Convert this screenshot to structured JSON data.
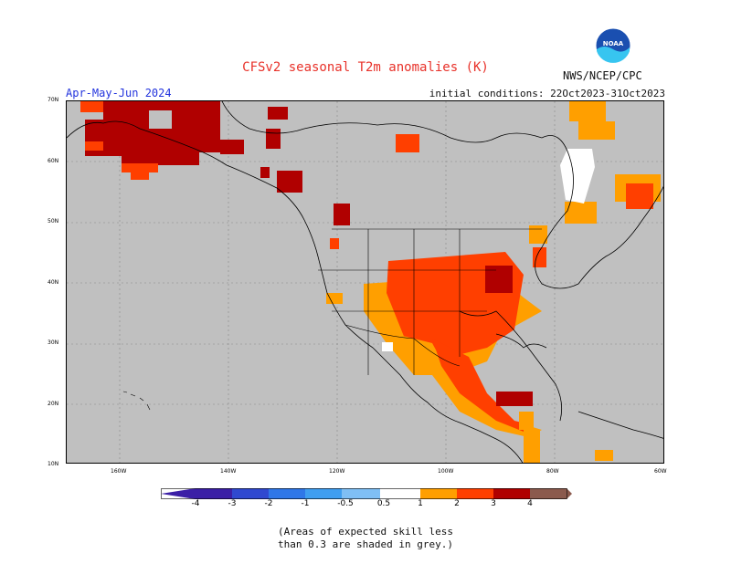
{
  "header": {
    "title": "CFSv2 seasonal T2m anomalies (K)",
    "org": "NWS/NCEP/CPC",
    "logo_text": "NOAA",
    "season": "Apr-May-Jun 2024",
    "initial_conditions": "initial conditions: 22Oct2023-31Oct2023"
  },
  "map": {
    "lat_labels": [
      "70N",
      "60N",
      "50N",
      "40N",
      "30N",
      "20N",
      "10N"
    ],
    "lon_labels": [
      "160W",
      "140W",
      "120W",
      "100W",
      "80W",
      "60W"
    ],
    "colors": {
      "background": "#c0c0c0",
      "neutral": "#ffffff",
      "warm_05_1": "#ff9f00",
      "warm_1_2": "#ff3f00",
      "warm_2_3": "#b00000",
      "warm_3_4": "#c79a8f"
    }
  },
  "colorbar": {
    "labels": [
      "-4",
      "-3",
      "-2",
      "-1",
      "-0.5",
      "0.5",
      "1",
      "2",
      "3",
      "4"
    ],
    "colors": [
      "#3b1fa6",
      "#3049d0",
      "#2f77e8",
      "#3f9ef0",
      "#7fbff5",
      "#ffffff",
      "#ff9f00",
      "#ff3f00",
      "#b00000",
      "#8c0a0a",
      "#c79a8f",
      "#8b5a4d"
    ]
  },
  "note": {
    "line1": "(Areas of expected skill less",
    "line2": "than 0.3 are shaded in grey.)"
  }
}
